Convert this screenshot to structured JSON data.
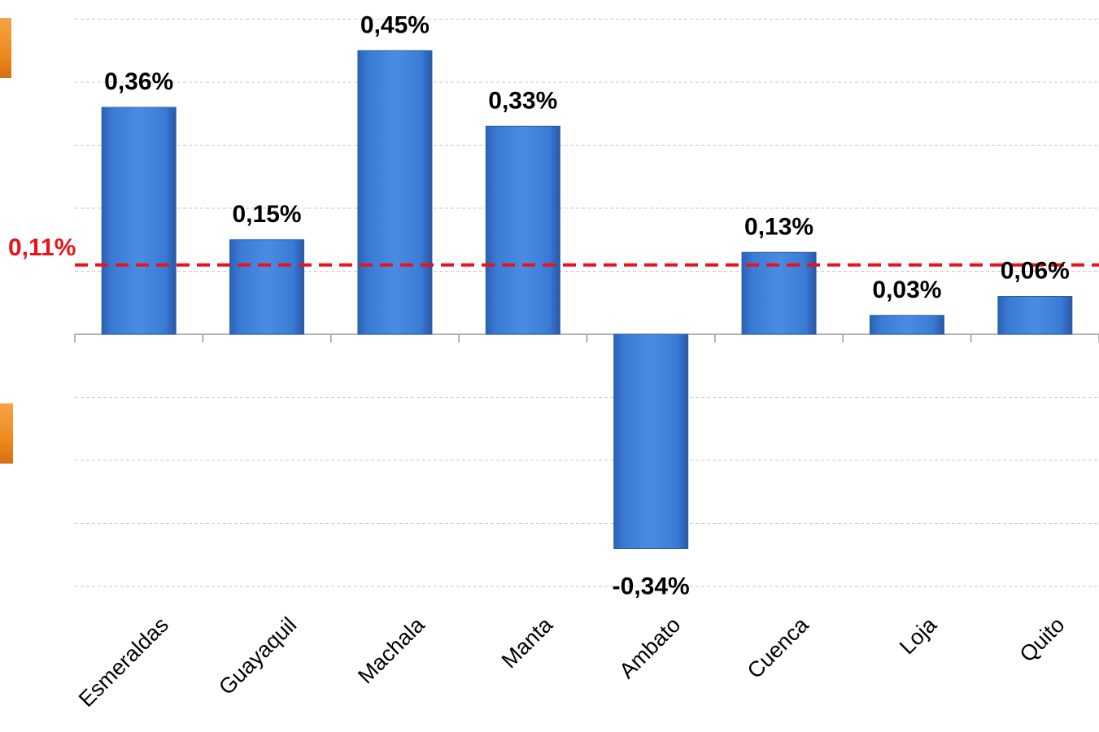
{
  "chart_data": {
    "type": "bar",
    "categories": [
      "Esmeraldas",
      "Guayaquil",
      "Machala",
      "Manta",
      "Ambato",
      "Cuenca",
      "Loja",
      "Quito"
    ],
    "values": [
      0.36,
      0.15,
      0.45,
      0.33,
      -0.34,
      0.13,
      0.03,
      0.06
    ],
    "value_labels": [
      "0,36%",
      "0,15%",
      "0,45%",
      "0,33%",
      "-0,34%",
      "0,13%",
      "0,03%",
      "0,06%"
    ],
    "reference_line": {
      "value": 0.11,
      "label": "0,11%",
      "color": "#e8141b",
      "style": "dashed"
    },
    "ylim": [
      -0.4,
      0.5
    ],
    "gridline_values": [
      -0.4,
      -0.3,
      -0.2,
      -0.1,
      0.1,
      0.2,
      0.3,
      0.4,
      0.5
    ],
    "grid": true,
    "legend": "none",
    "bar_color": "#3b7dd8",
    "title": "",
    "xlabel": "",
    "ylabel": ""
  }
}
